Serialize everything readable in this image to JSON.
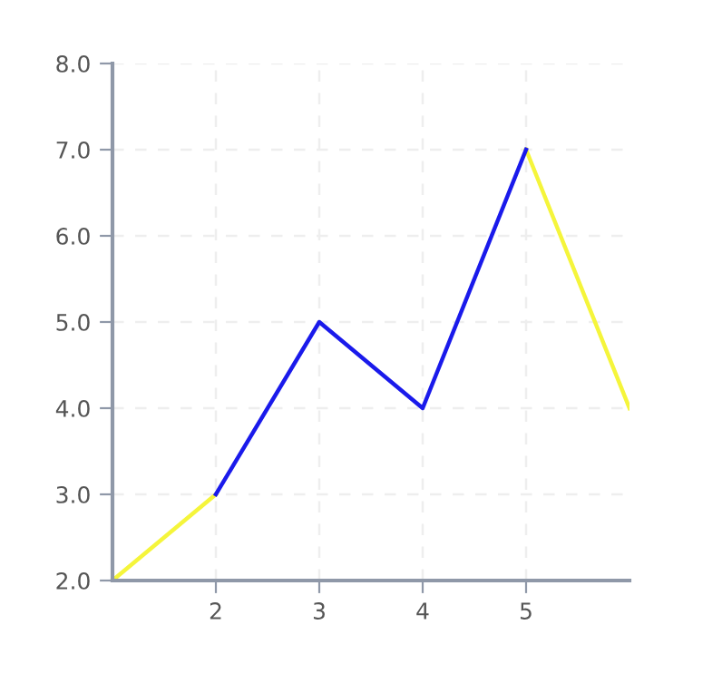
{
  "chart_data": {
    "type": "line",
    "x": [
      1,
      2,
      3,
      4,
      5,
      6
    ],
    "series": [
      {
        "color": "#f5f53b",
        "values": [
          2,
          3,
          null,
          null,
          7,
          4
        ]
      },
      {
        "color": "#1a1aeb",
        "values": [
          null,
          3,
          5,
          4,
          7,
          null
        ]
      }
    ],
    "xlim": [
      1,
      6
    ],
    "xticks": [
      2,
      3,
      4,
      5
    ],
    "ylim": [
      2,
      8
    ],
    "yticks": [
      {
        "value": 2,
        "label": "2.0"
      },
      {
        "value": 3,
        "label": "3.0"
      },
      {
        "value": 4,
        "label": "4.0"
      },
      {
        "value": 5,
        "label": "5.0"
      },
      {
        "value": 6,
        "label": "6.0"
      },
      {
        "value": 7,
        "label": "7.0"
      },
      {
        "value": 8,
        "label": "8.0"
      }
    ],
    "grid": true,
    "marker": "none",
    "line_style": "solid",
    "legend": false
  }
}
